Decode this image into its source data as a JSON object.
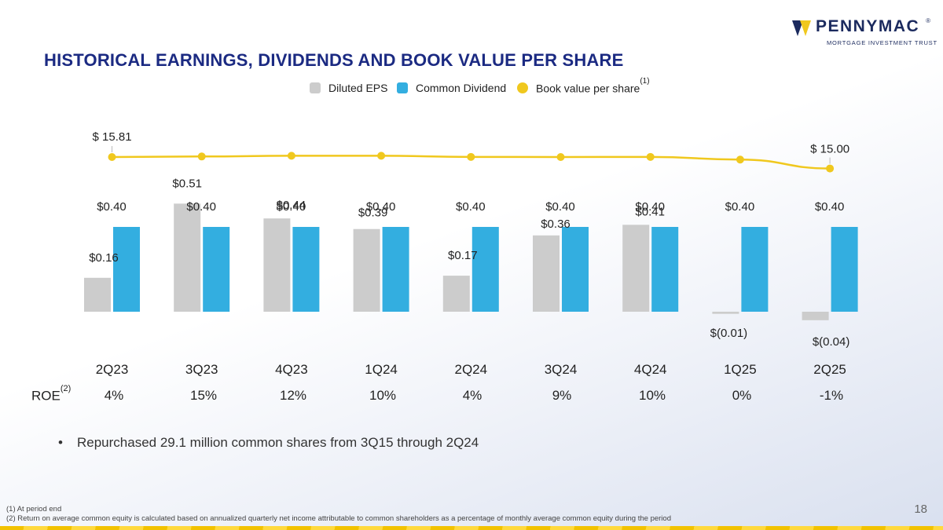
{
  "logo": {
    "name": "PENNYMAC",
    "tm": "®",
    "subtitle": "MORTGAGE INVESTMENT TRUST"
  },
  "title": "HISTORICAL EARNINGS, DIVIDENDS AND BOOK VALUE PER SHARE",
  "legend": {
    "eps": "Diluted EPS",
    "dividend": "Common Dividend",
    "bvps": "Book value per share",
    "bvps_note": "(1)"
  },
  "colors": {
    "eps": "#cccccc",
    "dividend": "#33aee0",
    "bvps": "#f0c81e",
    "title": "#1b2a82"
  },
  "chart_data": {
    "type": "bar",
    "title": "HISTORICAL EARNINGS, DIVIDENDS AND BOOK VALUE PER SHARE",
    "categories": [
      "2Q23",
      "3Q23",
      "4Q23",
      "1Q24",
      "2Q24",
      "3Q24",
      "4Q24",
      "1Q25",
      "2Q25"
    ],
    "series": [
      {
        "name": "Diluted EPS",
        "values": [
          0.16,
          0.51,
          0.44,
          0.39,
          0.17,
          0.36,
          0.41,
          -0.01,
          -0.04
        ],
        "labels": [
          "$0.16",
          "$0.51",
          "$0.44",
          "$0.39",
          "$0.17",
          "$0.36",
          "$0.41",
          "$(0.01)",
          "$(0.04)"
        ]
      },
      {
        "name": "Common Dividend",
        "values": [
          0.4,
          0.4,
          0.4,
          0.4,
          0.4,
          0.4,
          0.4,
          0.4,
          0.4
        ],
        "labels": [
          "$0.40",
          "$0.40",
          "$0.40",
          "$0.40",
          "$0.40",
          "$0.40",
          "$0.40",
          "$0.40",
          "$0.40"
        ]
      },
      {
        "name": "Book value per share",
        "type": "line",
        "values": [
          15.81,
          15.85,
          15.9,
          15.9,
          15.82,
          15.81,
          15.82,
          15.63,
          15.0
        ],
        "labels": [
          "$ 15.81",
          "",
          "",
          "",
          "",
          "",
          "",
          "",
          "$ 15.00"
        ]
      }
    ],
    "ylim": [
      -0.04,
      0.51
    ],
    "xlabel": "",
    "ylabel": ""
  },
  "roe": {
    "label": "ROE",
    "note": "(2)",
    "values": [
      "4%",
      "15%",
      "12%",
      "10%",
      "4%",
      "9%",
      "10%",
      "0%",
      "-1%"
    ]
  },
  "bullet": "Repurchased 29.1 million common shares from 3Q15 through 2Q24",
  "footnotes": [
    "(1) At period end",
    "(2) Return on average common equity is calculated based on annualized quarterly net income attributable to common shareholders as a percentage of monthly average common equity during the period"
  ],
  "page_number": "18"
}
